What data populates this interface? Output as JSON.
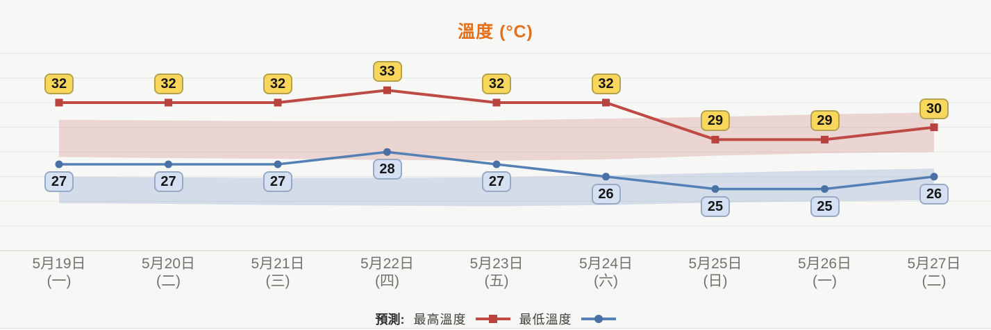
{
  "title": "溫度 (°C)",
  "legend": {
    "prefix": "預測:",
    "high_label": "最高溫度",
    "low_label": "最低溫度"
  },
  "colors": {
    "background": "#f7f7f5",
    "title": "#e2711d",
    "grid": "#e5e5e2",
    "axis": "#d5d5d1",
    "high_line": "#bd4a44",
    "high_marker": "#b8423d",
    "high_badge_fill": "#f9d65c",
    "high_badge_border": "#b3a24d",
    "low_line": "#5580b5",
    "low_marker": "#4a71a6",
    "low_badge_fill": "#d5e1f2",
    "low_badge_border": "#98a9c3",
    "date_text": "#73726e",
    "legend_text": "#3e3e3a"
  },
  "chart_data": {
    "type": "line",
    "title": "溫度 (°C)",
    "categories": [
      {
        "date": "5月19日",
        "weekday": "(一)"
      },
      {
        "date": "5月20日",
        "weekday": "(二)"
      },
      {
        "date": "5月21日",
        "weekday": "(三)"
      },
      {
        "date": "5月22日",
        "weekday": "(四)"
      },
      {
        "date": "5月23日",
        "weekday": "(五)"
      },
      {
        "date": "5月24日",
        "weekday": "(六)"
      },
      {
        "date": "5月25日",
        "weekday": "(日)"
      },
      {
        "date": "5月26日",
        "weekday": "(一)"
      },
      {
        "date": "5月27日",
        "weekday": "(二)"
      }
    ],
    "series": [
      {
        "id": "high",
        "name": "最高溫度",
        "values": [
          32,
          32,
          32,
          33,
          32,
          32,
          29,
          29,
          30
        ],
        "color": "#bd4a44",
        "marker": "square",
        "marker_color": "#b8423d",
        "line_width": 4
      },
      {
        "id": "low",
        "name": "最低溫度",
        "values": [
          27,
          27,
          27,
          28,
          27,
          26,
          25,
          25,
          26
        ],
        "color": "#5580b5",
        "marker": "circle",
        "marker_color": "#4a71a6",
        "line_width": 3.5
      }
    ],
    "bands": [
      {
        "name": "high-range",
        "fill": "rgba(202,122,120,0.27)",
        "top": [
          30.6,
          30.55,
          30.5,
          30.5,
          30.55,
          30.7,
          30.85,
          31.05,
          31.2
        ],
        "bottom": [
          27.6,
          27.5,
          27.45,
          27.35,
          27.3,
          27.4,
          27.7,
          27.9,
          28.0
        ]
      },
      {
        "name": "low-range",
        "fill": "rgba(130,160,203,0.30)",
        "top": [
          26.0,
          25.95,
          25.9,
          25.9,
          25.95,
          26.1,
          26.3,
          26.5,
          26.65
        ],
        "bottom": [
          23.85,
          23.8,
          23.7,
          23.65,
          23.6,
          23.7,
          23.9,
          24.0,
          24.1
        ]
      }
    ],
    "ylim": [
      20,
      36
    ],
    "gridline_values": [
      36,
      34,
      32,
      30,
      28,
      26,
      24,
      22,
      20
    ],
    "grid": true,
    "legend_position": "bottom"
  }
}
